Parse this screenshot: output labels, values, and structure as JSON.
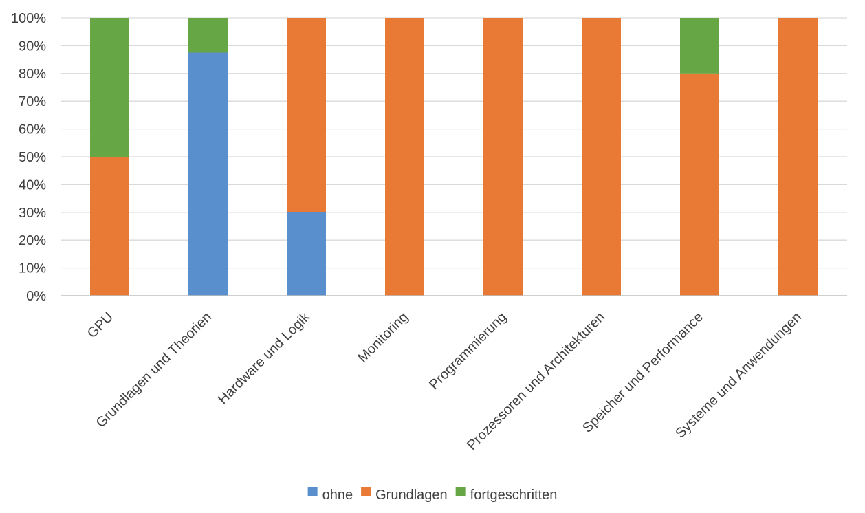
{
  "chart_data": {
    "type": "bar",
    "stacked": true,
    "percent": true,
    "categories": [
      "GPU",
      "Grundlagen und Theorien",
      "Hardware und Logik",
      "Monitoring",
      "Programmierung",
      "Prozessoren und Architekturen",
      "Speicher und Performance",
      "Systeme und Anwendungen"
    ],
    "series": [
      {
        "name": "ohne",
        "color": "#5a8fcd",
        "values": [
          0,
          87.5,
          30,
          0,
          0,
          0,
          0,
          0
        ]
      },
      {
        "name": "Grundlagen",
        "color": "#e97a36",
        "values": [
          50,
          0,
          70,
          100,
          100,
          100,
          80,
          100
        ]
      },
      {
        "name": "fortgeschritten",
        "color": "#66a644",
        "values": [
          50,
          12.5,
          0,
          0,
          0,
          0,
          20,
          0
        ]
      }
    ],
    "ylim": [
      0,
      100
    ],
    "yticks": [
      "0%",
      "10%",
      "20%",
      "30%",
      "40%",
      "50%",
      "60%",
      "70%",
      "80%",
      "90%",
      "100%"
    ],
    "grid": true,
    "legend_position": "bottom"
  }
}
